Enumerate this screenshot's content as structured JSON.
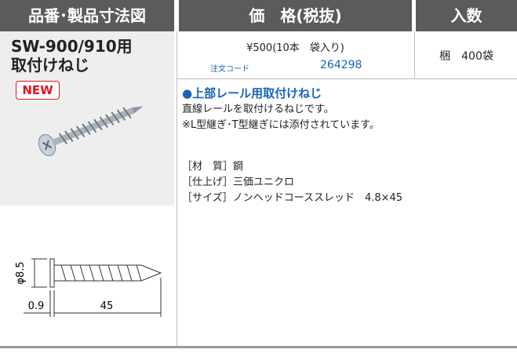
{
  "header": {
    "columns": [
      "品番･製品寸法図",
      "価　格(税抜)",
      "入数"
    ]
  },
  "product": {
    "name_lines": [
      "SW-900/910用",
      "取付けねじ"
    ],
    "badge": "NEW"
  },
  "price": {
    "text": "¥500(10本　袋入り)",
    "order_code_label": "注文コード",
    "order_code": "264298"
  },
  "quantity": "梱　400袋",
  "description": {
    "title": "●上部レール用取付けねじ",
    "lines": [
      "直線レールを取付けるねじです。",
      "※L型継ぎ･T型継ぎには添付されています。"
    ]
  },
  "specs": [
    "［材　質］鋼",
    "［仕上げ］三価ユニクロ",
    "［サイズ］ノンヘッドコーススレッド　4.8×45"
  ],
  "dimensions": {
    "diameter": "φ8.5",
    "head": "0.9",
    "length": "45"
  }
}
